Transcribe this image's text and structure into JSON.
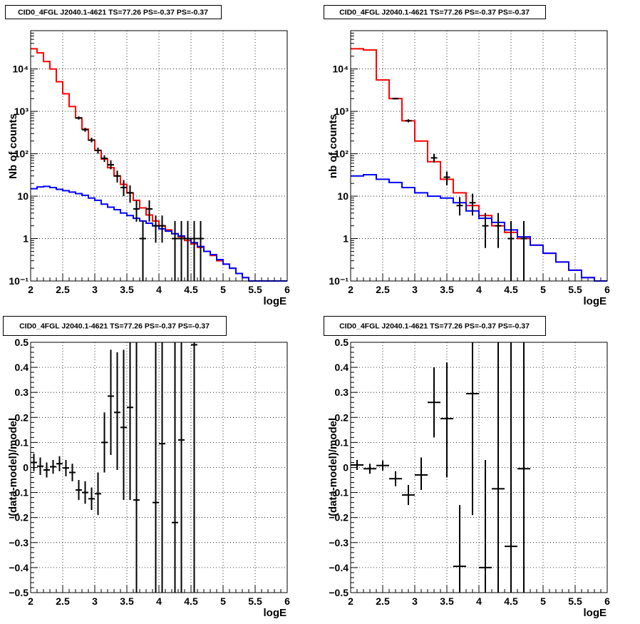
{
  "colors": {
    "model_total": "#ff0000",
    "model_source": "#0000ff",
    "data": "#000000",
    "grid": "#000000"
  },
  "chart_data": [
    {
      "id": "counts-left",
      "type": "line",
      "title": "CID0_4FGL J2040.1-4621 TS=77.26 PS=-0.37 PS=-0.37",
      "xlabel": "logE",
      "ylabel": "Nb of counts",
      "xlim": [
        2,
        6
      ],
      "ylim": [
        0.1,
        80000
      ],
      "yscale": "log",
      "grid": true,
      "xticks": [
        2,
        2.5,
        3,
        3.5,
        4,
        4.5,
        5,
        5.5,
        6
      ],
      "xtick_labels": [
        "2",
        "2.5",
        "3",
        "3.5",
        "4",
        "4.5",
        "5",
        "5.5",
        "6"
      ],
      "yticks": [
        0.1,
        1,
        10,
        100,
        1000,
        10000
      ],
      "ytick_labels": [
        "10⁻¹",
        "1",
        "10",
        "10²",
        "10³",
        "10⁴"
      ],
      "bin_edges": [
        2,
        2.1,
        2.2,
        2.3,
        2.4,
        2.5,
        2.6,
        2.7,
        2.8,
        2.9,
        3,
        3.1,
        3.2,
        3.3,
        3.4,
        3.5,
        3.6,
        3.7,
        3.8,
        3.9,
        4,
        4.1,
        4.2,
        4.3,
        4.4,
        4.5,
        4.6,
        4.7,
        4.8,
        4.9,
        5,
        5.1,
        5.2,
        5.3,
        5.4,
        5.5,
        5.6,
        5.7,
        5.8,
        5.9,
        6
      ],
      "series": [
        {
          "kind": "step",
          "color": "model_total",
          "values": [
            30000,
            24000,
            15000,
            10000,
            5000,
            2600,
            1300,
            700,
            380,
            210,
            120,
            75,
            47,
            30,
            19,
            12,
            8,
            5.3,
            3.6,
            2.6,
            2,
            1.6,
            1.3,
            1.1,
            0.9,
            0.75,
            0.62,
            0.5,
            0.4,
            0.3,
            0.25,
            0.2,
            0.15,
            0.12,
            0.1,
            0.1,
            0.1,
            0.1,
            0.1,
            0.1
          ]
        },
        {
          "kind": "step",
          "color": "model_source",
          "values": [
            15,
            16.5,
            17,
            16,
            14.5,
            13.5,
            12.5,
            11.5,
            10.5,
            9,
            8,
            6.5,
            5.5,
            4.8,
            4,
            3.5,
            3,
            2.6,
            2.3,
            2,
            1.7,
            1.5,
            1.3,
            1.15,
            1,
            0.8,
            0.65,
            0.5,
            0.42,
            0.32,
            0.25,
            0.2,
            0.15,
            0.12,
            0.1,
            0.1,
            0.1,
            0.1,
            0.1,
            0.1
          ]
        },
        {
          "kind": "errorbar",
          "color": "data",
          "x": [
            2.75,
            2.85,
            2.95,
            3.05,
            3.15,
            3.25,
            3.35,
            3.45,
            3.55,
            3.65,
            3.75,
            3.85,
            3.95,
            4.05,
            4.25,
            4.35,
            4.45,
            4.55,
            4.65
          ],
          "y": [
            700,
            370,
            210,
            120,
            78,
            55,
            30,
            16,
            12,
            5,
            1,
            5,
            2,
            2,
            1,
            1,
            1,
            1,
            1
          ],
          "ylo": [
            640,
            330,
            185,
            100,
            64,
            43,
            21,
            10,
            7,
            2.5,
            0.1,
            2.5,
            0.8,
            0.8,
            0.1,
            0.1,
            0.1,
            0.1,
            0.1
          ],
          "yhi": [
            760,
            410,
            240,
            140,
            92,
            70,
            40,
            24,
            18,
            8,
            2.6,
            8,
            3.5,
            3.5,
            2.6,
            2.6,
            2.6,
            2.6,
            2.6
          ]
        }
      ]
    },
    {
      "id": "counts-right",
      "type": "line",
      "title": "CID0_4FGL J2040.1-4621 TS=77.26 PS=-0.37 PS=-0.37",
      "xlabel": "logE",
      "ylabel": "nb of counts",
      "xlim": [
        2,
        6
      ],
      "ylim": [
        0.1,
        80000
      ],
      "yscale": "log",
      "grid": true,
      "xticks": [
        2,
        2.5,
        3,
        3.5,
        4,
        4.5,
        5,
        5.5,
        6
      ],
      "xtick_labels": [
        "2",
        "2.5",
        "3",
        "3.5",
        "4",
        "4.5",
        "5",
        "5.5",
        "6"
      ],
      "yticks": [
        0.1,
        1,
        10,
        100,
        1000,
        10000
      ],
      "ytick_labels": [
        "10⁻¹",
        "1",
        "10",
        "10²",
        "10³",
        "10⁴"
      ],
      "bin_edges": [
        2,
        2.2,
        2.4,
        2.6,
        2.8,
        3,
        3.2,
        3.4,
        3.6,
        3.8,
        4,
        4.2,
        4.4,
        4.6,
        4.8,
        5,
        5.2,
        5.4,
        5.6,
        5.8,
        6
      ],
      "series": [
        {
          "kind": "step",
          "color": "model_total",
          "values": [
            30000,
            28000,
            5500,
            2000,
            600,
            200,
            65,
            25,
            12,
            6,
            3.5,
            2,
            1.4,
            1,
            0.7,
            0.45,
            0.28,
            0.18,
            0.12,
            0.1
          ]
        },
        {
          "kind": "step",
          "color": "model_source",
          "values": [
            30,
            32,
            25,
            21,
            16,
            12,
            10,
            9,
            7,
            4.5,
            3,
            2.4,
            1.6,
            1.1,
            0.7,
            0.45,
            0.28,
            0.18,
            0.12,
            0.1
          ]
        },
        {
          "kind": "errorbar",
          "color": "data",
          "x": [
            2.7,
            2.9,
            3.3,
            3.5,
            3.7,
            3.9,
            4.1,
            4.3,
            4.5,
            4.7
          ],
          "y": [
            2000,
            600,
            80,
            28,
            6,
            7,
            2,
            2,
            1,
            1
          ],
          "ylo": [
            1910,
            550,
            62,
            18,
            3.5,
            3.5,
            0.6,
            0.6,
            0.1,
            0.1
          ],
          "yhi": [
            2090,
            650,
            100,
            38,
            9.5,
            11.5,
            4,
            4,
            2.6,
            2.6
          ]
        }
      ]
    },
    {
      "id": "residual-left",
      "type": "scatter",
      "title": "CID0_4FGL J2040.1-4621 TS=77.26 PS=-0.37 PS=-0.37",
      "xlabel": "logE",
      "ylabel": "(data-model)/model",
      "xlim": [
        2,
        6
      ],
      "ylim": [
        -0.5,
        0.5
      ],
      "yscale": "linear",
      "grid": true,
      "xticks": [
        2,
        2.5,
        3,
        3.5,
        4,
        4.5,
        5,
        5.5,
        6
      ],
      "xtick_labels": [
        "2",
        "2.5",
        "3",
        "3.5",
        "4",
        "4.5",
        "5",
        "5.5",
        "6"
      ],
      "yticks": [
        -0.5,
        -0.4,
        -0.3,
        -0.2,
        -0.1,
        0,
        0.1,
        0.2,
        0.3,
        0.4,
        0.5
      ],
      "ytick_labels": [
        "−0.5",
        "−0.4",
        "−0.3",
        "−0.2",
        "−0.1",
        "0",
        "0.1",
        "0.2",
        "0.3",
        "0.4",
        "0.5"
      ],
      "series": [
        {
          "kind": "errorbar",
          "color": "data",
          "x": [
            2.05,
            2.15,
            2.25,
            2.35,
            2.45,
            2.55,
            2.65,
            2.75,
            2.85,
            2.95,
            3.05,
            3.15,
            3.25,
            3.35,
            3.45,
            3.55,
            3.65,
            3.95,
            4.05,
            4.25,
            4.35,
            4.55
          ],
          "xerr": 0.05,
          "y": [
            0.02,
            0.005,
            -0.01,
            0.003,
            0.015,
            -0.002,
            -0.02,
            -0.09,
            -0.1,
            -0.125,
            -0.105,
            0.1,
            0.285,
            0.22,
            0.16,
            0.24,
            -0.13,
            -0.14,
            0.095,
            -0.22,
            0.11,
            0.49
          ],
          "ylo": [
            -0.015,
            -0.03,
            -0.04,
            -0.025,
            -0.015,
            -0.035,
            -0.055,
            -0.13,
            -0.145,
            -0.17,
            -0.19,
            -0.02,
            0.05,
            -0.01,
            -0.13,
            -0.13,
            -0.5,
            -0.5,
            -0.5,
            -0.5,
            -0.5,
            -0.5
          ],
          "yhi": [
            0.055,
            0.04,
            0.02,
            0.03,
            0.045,
            0.03,
            0.015,
            -0.05,
            -0.055,
            -0.08,
            -0.02,
            0.22,
            0.47,
            0.46,
            0.47,
            0.5,
            0.5,
            0.5,
            0.5,
            0.5,
            0.5,
            0.5
          ]
        }
      ]
    },
    {
      "id": "residual-right",
      "type": "scatter",
      "title": "CID0_4FGL J2040.1-4621 TS=77.26 PS=-0.37 PS=-0.37",
      "xlabel": "logE",
      "ylabel": "(data-model)/model",
      "xlim": [
        2,
        6
      ],
      "ylim": [
        -0.5,
        0.5
      ],
      "yscale": "linear",
      "grid": true,
      "xticks": [
        2,
        2.5,
        3,
        3.5,
        4,
        4.5,
        5,
        5.5,
        6
      ],
      "xtick_labels": [
        "2",
        "2.5",
        "3",
        "3.5",
        "4",
        "4.5",
        "5",
        "5.5",
        "6"
      ],
      "yticks": [
        -0.5,
        -0.4,
        -0.3,
        -0.2,
        -0.1,
        0,
        0.1,
        0.2,
        0.3,
        0.4,
        0.5
      ],
      "ytick_labels": [
        "−0.5",
        "−0.4",
        "−0.3",
        "−0.2",
        "−0.1",
        "0",
        "0.1",
        "0.2",
        "0.3",
        "0.4",
        "0.5"
      ],
      "series": [
        {
          "kind": "errorbar",
          "color": "data",
          "x": [
            2.1,
            2.3,
            2.5,
            2.7,
            2.9,
            3.1,
            3.3,
            3.5,
            3.7,
            3.9,
            4.1,
            4.3,
            4.5,
            4.7
          ],
          "xerr": 0.1,
          "y": [
            0.01,
            -0.005,
            0.008,
            -0.045,
            -0.11,
            -0.03,
            0.26,
            0.195,
            -0.395,
            0.295,
            -0.4,
            -0.085,
            -0.315,
            -0.005
          ],
          "ylo": [
            -0.01,
            -0.025,
            -0.012,
            -0.075,
            -0.15,
            -0.09,
            0.12,
            -0.04,
            -0.5,
            -0.19,
            -0.5,
            -0.5,
            -0.5,
            -0.5
          ],
          "yhi": [
            0.03,
            0.015,
            0.028,
            -0.015,
            -0.07,
            0.04,
            0.4,
            0.42,
            -0.15,
            0.5,
            0.03,
            0.5,
            0.5,
            0.5
          ]
        }
      ]
    }
  ]
}
